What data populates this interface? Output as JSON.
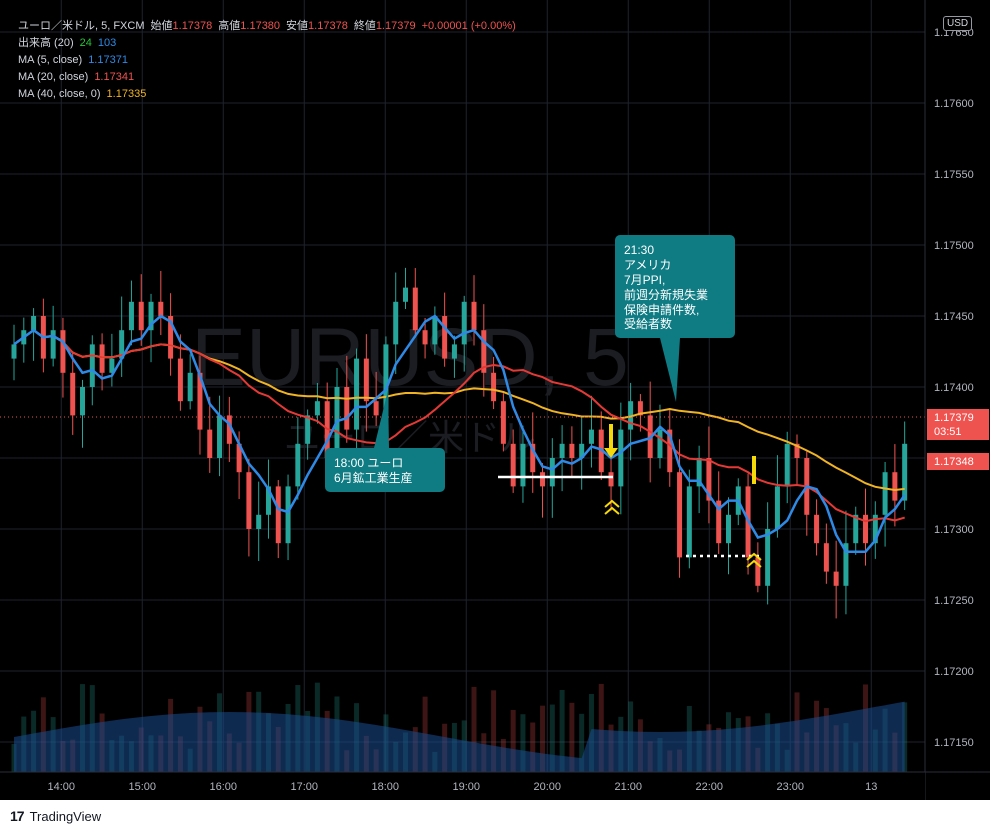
{
  "header": {
    "symbol": "ユーロ／米ドル, 5, FXCM",
    "open_label": "始値",
    "open": "1.17378",
    "high_label": "高値",
    "high": "1.17380",
    "low_label": "安値",
    "low": "1.17378",
    "close_label": "終値",
    "close": "1.17379",
    "change": "+0.00001 (+0.00%)"
  },
  "indicators": {
    "volume_label": "出来高 (20)",
    "volume_value": "24",
    "volume_ma": "103",
    "ma5_label": "MA (5, close)",
    "ma5_value": "1.17371",
    "ma20_label": "MA (20, close)",
    "ma20_value": "1.17341",
    "ma40_label": "MA (40, close, 0)",
    "ma40_value": "1.17335"
  },
  "currency_button": "USD",
  "watermark": {
    "symbol": "EURUSD, 5",
    "name": "ユーロ／米ドル"
  },
  "annotations": [
    {
      "time": "21:30",
      "lines": [
        "21:30",
        "アメリカ",
        "7月PPI,",
        "前週分新規失業",
        "保険申請件数,",
        "受給者数"
      ]
    },
    {
      "time": "18:00",
      "lines": [
        "18:00 ユーロ",
        "6月鉱工業生産"
      ]
    }
  ],
  "price_labels": {
    "last_price": "1.17379",
    "countdown": "03:51",
    "marker_price": "1.17348"
  },
  "footer": {
    "brand": "TradingView"
  },
  "colors": {
    "background": "#000000",
    "grid": "#1e222d",
    "up": "#26a69a",
    "down": "#ef5350",
    "ma5": "#2e8ae6",
    "ma20": "#e53935",
    "ma40": "#f0b323",
    "annotation_fill": "#0f7b83",
    "volume_area": "#1a4d8f"
  },
  "chart_data": {
    "type": "candlestick",
    "interval_minutes": 5,
    "x_tick_labels": [
      "14:00",
      "15:00",
      "16:00",
      "17:00",
      "18:00",
      "19:00",
      "20:00",
      "21:00",
      "22:00",
      "23:00",
      "13"
    ],
    "y_tick_labels": [
      "1.17650",
      "1.17600",
      "1.17550",
      "1.17500",
      "1.17450",
      "1.17400",
      "1.17350",
      "1.17300",
      "1.17250",
      "1.17200",
      "1.17150"
    ],
    "ylim": [
      1.17125,
      1.17665
    ],
    "anchors": {
      "first_bar_time": "13:25",
      "x_axis_ticks_time": [
        "14:00",
        "15:00",
        "16:00",
        "17:00",
        "18:00",
        "19:00",
        "20:00",
        "21:00",
        "22:00",
        "23:00",
        "00:00"
      ]
    },
    "candles_close": [
      1.1743,
      1.1744,
      1.1745,
      1.1742,
      1.1744,
      1.1741,
      1.1738,
      1.174,
      1.1743,
      1.1741,
      1.1742,
      1.1744,
      1.1746,
      1.1744,
      1.1746,
      1.1745,
      1.1742,
      1.1739,
      1.1741,
      1.1737,
      1.1735,
      1.1738,
      1.1736,
      1.1734,
      1.173,
      1.1731,
      1.1733,
      1.1729,
      1.1733,
      1.1736,
      1.1738,
      1.1739,
      1.1735,
      1.174,
      1.1737,
      1.1742,
      1.1739,
      1.1738,
      1.1743,
      1.1746,
      1.1747,
      1.1744,
      1.1743,
      1.1745,
      1.1742,
      1.1743,
      1.1746,
      1.1744,
      1.1741,
      1.1739,
      1.1736,
      1.1733,
      1.1736,
      1.1734,
      1.1733,
      1.1735,
      1.1736,
      1.1735,
      1.1736,
      1.1737,
      1.1734,
      1.1733,
      1.1737,
      1.1739,
      1.1738,
      1.1735,
      1.1737,
      1.1734,
      1.1728,
      1.1733,
      1.1735,
      1.1732,
      1.1729,
      1.1731,
      1.1733,
      1.1728,
      1.1726,
      1.173,
      1.1733,
      1.1736,
      1.1735,
      1.1731,
      1.1729,
      1.1727,
      1.1726,
      1.1729,
      1.1731,
      1.1729,
      1.1731,
      1.1734,
      1.1732,
      1.1736
    ],
    "ma5_close": 1.17371,
    "ma20_close": 1.17341,
    "ma40_close": 1.17335,
    "last_price": 1.17379,
    "volume_ma": 103,
    "volume_last": 24
  }
}
